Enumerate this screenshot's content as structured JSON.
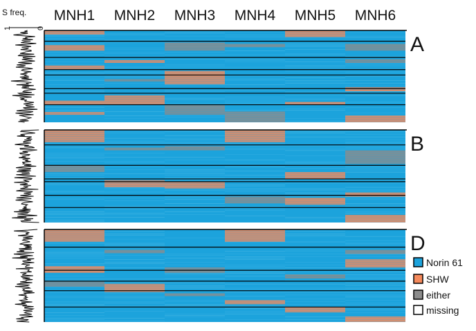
{
  "chart_data": {
    "type": "heatmap",
    "title": "",
    "columns": [
      "MNH1",
      "MNH2",
      "MNH3",
      "MNH4",
      "MNH5",
      "MNH6"
    ],
    "sfreq_axis": {
      "label": "S freq.",
      "ticks": [
        "1",
        "0"
      ],
      "range": [
        0,
        1
      ]
    },
    "legend": [
      {
        "label": "Norin 61",
        "color": "#1ca3dc"
      },
      {
        "label": "SHW",
        "color": "#f58a5c"
      },
      {
        "label": "either",
        "color": "#8c8c8c"
      },
      {
        "label": "missing",
        "color": "#ffffff"
      }
    ],
    "panels": [
      {
        "label": "A",
        "row_range": [
          0,
          136
        ],
        "boundaries": [
          16,
          40,
          58,
          66,
          86,
          93,
          110
        ],
        "blocks": {
          "MNH1": [
            [
              0,
              6,
              "SHW"
            ],
            [
              22,
              30,
              "SHW"
            ],
            [
              52,
              58,
              "SHW"
            ],
            [
              104,
              110,
              "SHW"
            ],
            [
              121,
              125,
              "SHW"
            ]
          ],
          "MNH2": [
            [
              96,
              110,
              "SHW"
            ],
            [
              44,
              48,
              "SHW"
            ],
            [
              72,
              76,
              "either"
            ]
          ],
          "MNH3": [
            [
              18,
              30,
              "either"
            ],
            [
              60,
              80,
              "SHW"
            ],
            [
              110,
              125,
              "either"
            ]
          ],
          "MNH4": [
            [
              20,
              25,
              "either"
            ],
            [
              120,
              136,
              "either"
            ]
          ],
          "MNH5": [
            [
              0,
              10,
              "SHW"
            ],
            [
              106,
              110,
              "SHW"
            ]
          ],
          "MNH6": [
            [
              20,
              30,
              "either"
            ],
            [
              43,
              48,
              "either"
            ],
            [
              84,
              90,
              "SHW"
            ],
            [
              126,
              136,
              "SHW"
            ]
          ]
        }
      },
      {
        "label": "B",
        "row_range": [
          0,
          136
        ],
        "boundaries": [
          22,
          52,
          72,
          76,
          96,
          114
        ],
        "blocks": {
          "MNH1": [
            [
              0,
              18,
              "SHW"
            ],
            [
              52,
              62,
              "either"
            ]
          ],
          "MNH2": [
            [
              26,
              30,
              "either"
            ],
            [
              74,
              84,
              "SHW"
            ]
          ],
          "MNH3": [
            [
              76,
              86,
              "SHW"
            ],
            [
              24,
              30,
              "either"
            ]
          ],
          "MNH4": [
            [
              0,
              18,
              "SHW"
            ],
            [
              98,
              108,
              "either"
            ]
          ],
          "MNH5": [
            [
              62,
              72,
              "SHW"
            ],
            [
              100,
              110,
              "SHW"
            ]
          ],
          "MNH6": [
            [
              30,
              50,
              "either"
            ],
            [
              92,
              98,
              "SHW"
            ],
            [
              125,
              136,
              "SHW"
            ]
          ]
        }
      },
      {
        "label": "D",
        "row_range": [
          0,
          136
        ],
        "boundaries": [
          26,
          60,
          76,
          90,
          114
        ],
        "blocks": {
          "MNH1": [
            [
              0,
              18,
              "SHW"
            ],
            [
              54,
              64,
              "SHW"
            ],
            [
              76,
              84,
              "either"
            ]
          ],
          "MNH2": [
            [
              80,
              92,
              "SHW"
            ],
            [
              30,
              35,
              "either"
            ]
          ],
          "MNH3": [
            [
              56,
              64,
              "either"
            ],
            [
              94,
              98,
              "either"
            ]
          ],
          "MNH4": [
            [
              0,
              18,
              "SHW"
            ],
            [
              104,
              110,
              "SHW"
            ]
          ],
          "MNH5": [
            [
              66,
              72,
              "either"
            ],
            [
              114,
              122,
              "SHW"
            ]
          ],
          "MNH6": [
            [
              30,
              36,
              "either"
            ],
            [
              44,
              56,
              "SHW"
            ],
            [
              128,
              136,
              "SHW"
            ]
          ]
        }
      }
    ],
    "sfreq_profile": [
      0.35,
      0.55,
      0.4,
      0.7,
      0.3,
      0.5,
      0.8,
      0.45,
      0.25,
      0.6,
      0.4,
      0.75,
      0.35,
      0.5,
      0.3,
      0.65,
      0.55,
      0.2,
      0.45,
      0.7,
      0.4,
      0.3,
      0.6,
      0.5,
      0.35,
      0.75,
      0.45,
      0.25,
      0.55,
      0.4,
      0.65,
      0.3,
      0.5,
      0.6,
      0.2,
      0.45,
      0.7,
      0.35,
      0.5,
      0.4,
      0.3,
      0.55,
      0.65,
      0.25,
      0.45,
      0.6,
      0.35,
      0.5,
      0.7,
      0.4,
      0.3,
      0.55,
      0.45,
      0.6,
      0.25,
      0.5,
      0.35,
      0.65,
      0.4,
      0.55
    ]
  }
}
